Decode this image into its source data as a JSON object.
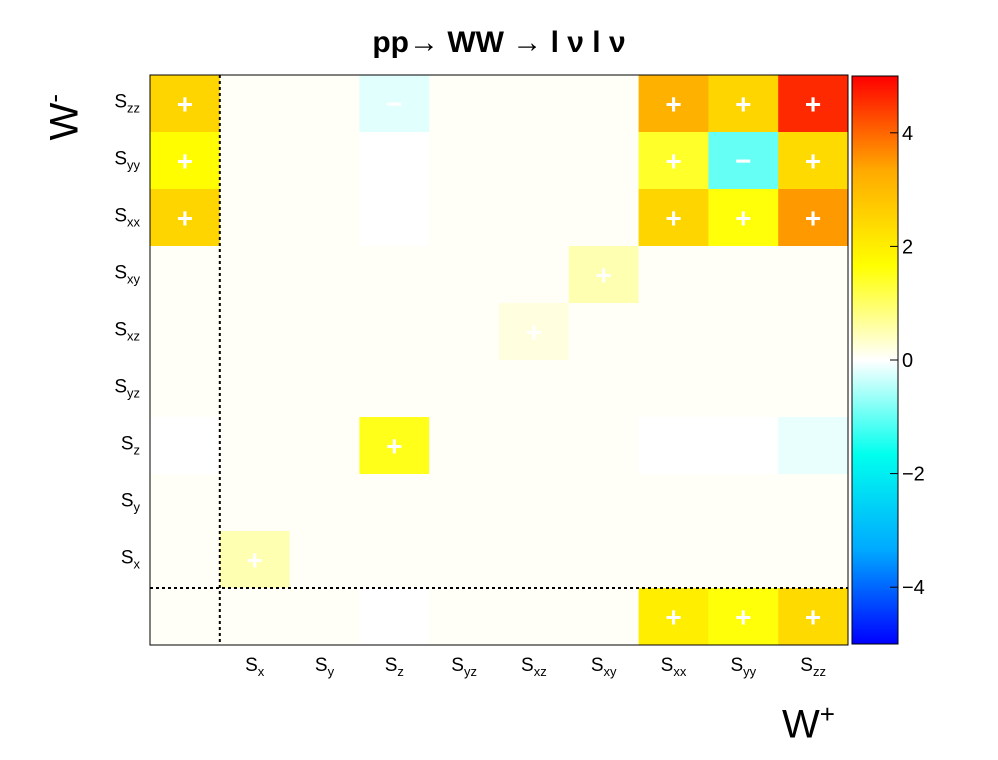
{
  "chart_data": {
    "type": "heatmap",
    "title": "pp→ WW → l ν l ν",
    "xlabel": "W",
    "xlabel_sup": "+",
    "ylabel": "W",
    "ylabel_sup": "-",
    "x_categories": [
      {
        "base": "S",
        "sub": ""
      },
      {
        "base": "S",
        "sub": "x"
      },
      {
        "base": "S",
        "sub": "y"
      },
      {
        "base": "S",
        "sub": "z"
      },
      {
        "base": "S",
        "sub": "yz"
      },
      {
        "base": "S",
        "sub": "xz"
      },
      {
        "base": "S",
        "sub": "xy"
      },
      {
        "base": "S",
        "sub": "xx"
      },
      {
        "base": "S",
        "sub": "yy"
      },
      {
        "base": "S",
        "sub": "zz"
      }
    ],
    "y_categories": [
      {
        "base": "S",
        "sub": "zz"
      },
      {
        "base": "S",
        "sub": "yy"
      },
      {
        "base": "S",
        "sub": "xx"
      },
      {
        "base": "S",
        "sub": "xy"
      },
      {
        "base": "S",
        "sub": "xz"
      },
      {
        "base": "S",
        "sub": "yz"
      },
      {
        "base": "S",
        "sub": "z"
      },
      {
        "base": "S",
        "sub": "y"
      },
      {
        "base": "S",
        "sub": "x"
      },
      {
        "base": "S",
        "sub": ""
      }
    ],
    "show_x_labels": [
      false,
      true,
      true,
      true,
      true,
      true,
      true,
      true,
      true,
      true
    ],
    "show_y_labels": [
      true,
      true,
      true,
      true,
      true,
      true,
      true,
      true,
      true,
      false
    ],
    "values": [
      [
        2.5,
        0.05,
        0.05,
        -0.2,
        0.05,
        0.05,
        0.05,
        3.2,
        2.5,
        4.6
      ],
      [
        1.7,
        0.05,
        0.05,
        0.0,
        0.05,
        0.05,
        0.05,
        1.4,
        -1.0,
        2.4
      ],
      [
        2.5,
        0.05,
        0.05,
        0.0,
        0.05,
        0.05,
        0.05,
        2.5,
        1.6,
        3.5
      ],
      [
        0.05,
        0.05,
        0.05,
        0.05,
        0.05,
        0.05,
        0.5,
        0.05,
        0.05,
        0.05
      ],
      [
        0.05,
        0.05,
        0.05,
        0.05,
        0.05,
        0.2,
        0.05,
        0.05,
        0.05,
        0.05
      ],
      [
        0.05,
        0.05,
        0.05,
        0.05,
        0.05,
        0.05,
        0.05,
        0.05,
        0.05,
        0.05
      ],
      [
        0.0,
        0.05,
        0.05,
        1.5,
        0.05,
        0.05,
        0.05,
        0.0,
        0.0,
        -0.15
      ],
      [
        0.05,
        0.05,
        0.05,
        0.05,
        0.05,
        0.05,
        0.05,
        0.05,
        0.05,
        0.05
      ],
      [
        0.05,
        0.5,
        0.05,
        0.05,
        0.05,
        0.05,
        0.05,
        0.05,
        0.05,
        0.05
      ],
      [
        0.05,
        0.05,
        0.05,
        0.0,
        0.05,
        0.05,
        0.05,
        2.0,
        1.6,
        2.4
      ]
    ],
    "signs": [
      [
        "+",
        "",
        "",
        "−",
        "",
        "",
        "",
        "+",
        "+",
        "+"
      ],
      [
        "+",
        "",
        "",
        "",
        "",
        "",
        "",
        "+",
        "−",
        "+"
      ],
      [
        "+",
        "",
        "",
        "",
        "",
        "",
        "",
        "+",
        "+",
        "+"
      ],
      [
        "",
        "",
        "",
        "",
        "",
        "",
        "+",
        "",
        "",
        ""
      ],
      [
        "",
        "",
        "",
        "",
        "",
        "+",
        "",
        "",
        "",
        ""
      ],
      [
        "",
        "",
        "",
        "",
        "",
        "",
        "",
        "",
        "",
        ""
      ],
      [
        "",
        "",
        "",
        "+",
        "",
        "",
        "",
        "",
        "",
        ""
      ],
      [
        "",
        "",
        "",
        "",
        "",
        "",
        "",
        "",
        "",
        ""
      ],
      [
        "",
        "+",
        "",
        "",
        "",
        "",
        "",
        "",
        "",
        ""
      ],
      [
        "",
        "",
        "",
        "",
        "",
        "",
        "",
        "+",
        "+",
        "+"
      ]
    ],
    "zlim": [
      -5,
      5
    ],
    "colorbar_ticks": [
      {
        "value": 4,
        "label": "4"
      },
      {
        "value": 2,
        "label": "2"
      },
      {
        "value": 0,
        "label": "0"
      },
      {
        "value": -2,
        "label": "−2"
      },
      {
        "value": -4,
        "label": "−4"
      }
    ],
    "colorscale": [
      "#0000ff",
      "#00aaff",
      "#00ffee",
      "#ffffff",
      "#ffff00",
      "#ffaa00",
      "#ff0000"
    ],
    "separator_lines": "dotted"
  }
}
